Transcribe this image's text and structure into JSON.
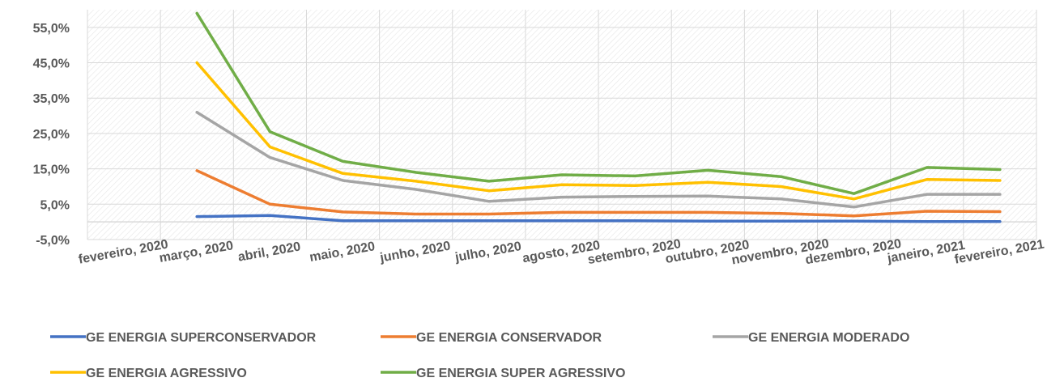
{
  "chart_data": {
    "type": "line",
    "title": "",
    "xlabel": "",
    "ylabel": "",
    "ylim": [
      -5.0,
      60.0
    ],
    "yticks": [
      -5.0,
      5.0,
      15.0,
      25.0,
      35.0,
      45.0,
      55.0
    ],
    "ytick_labels": [
      "-5,0%",
      "5,0%",
      "15,0%",
      "25,0%",
      "35,0%",
      "45,0%",
      "55,0%"
    ],
    "categories": [
      "fevereiro, 2020",
      "março, 2020",
      "abril, 2020",
      "maio, 2020",
      "junho, 2020",
      "julho, 2020",
      "agosto, 2020",
      "setembro, 2020",
      "outubro, 2020",
      "novembro, 2020",
      "dezembro, 2020",
      "janeiro, 2021",
      "fevereiro, 2021"
    ],
    "grid": true,
    "legend_position": "bottom",
    "series": [
      {
        "name": "GE ENERGIA SUPERCONSERVADOR",
        "color": "#4472C4",
        "values": [
          null,
          1.5,
          1.8,
          0.3,
          0.3,
          0.3,
          0.3,
          0.3,
          0.2,
          0.2,
          0.2,
          0.1,
          0.1
        ]
      },
      {
        "name": "GE ENERGIA CONSERVADOR",
        "color": "#ED7D31",
        "values": [
          null,
          14.5,
          5.0,
          2.8,
          2.2,
          2.2,
          2.7,
          2.7,
          2.7,
          2.4,
          1.7,
          3.0,
          2.9
        ]
      },
      {
        "name": "GE ENERGIA MODERADO",
        "color": "#A5A5A5",
        "values": [
          null,
          31.0,
          18.2,
          11.7,
          9.2,
          5.8,
          7.0,
          7.2,
          7.3,
          6.5,
          4.2,
          7.8,
          7.8
        ]
      },
      {
        "name": "GE ENERGIA AGRESSIVO",
        "color": "#FFC000",
        "values": [
          null,
          45.0,
          21.2,
          13.7,
          11.5,
          8.8,
          10.5,
          10.3,
          11.2,
          10.0,
          6.5,
          12.0,
          11.7
        ]
      },
      {
        "name": "GE ENERGIA SUPER AGRESSIVO",
        "color": "#70AD47",
        "values": [
          null,
          59.0,
          25.5,
          17.1,
          14.0,
          11.5,
          13.3,
          13.0,
          14.6,
          12.8,
          8.0,
          15.4,
          14.8
        ]
      }
    ]
  }
}
